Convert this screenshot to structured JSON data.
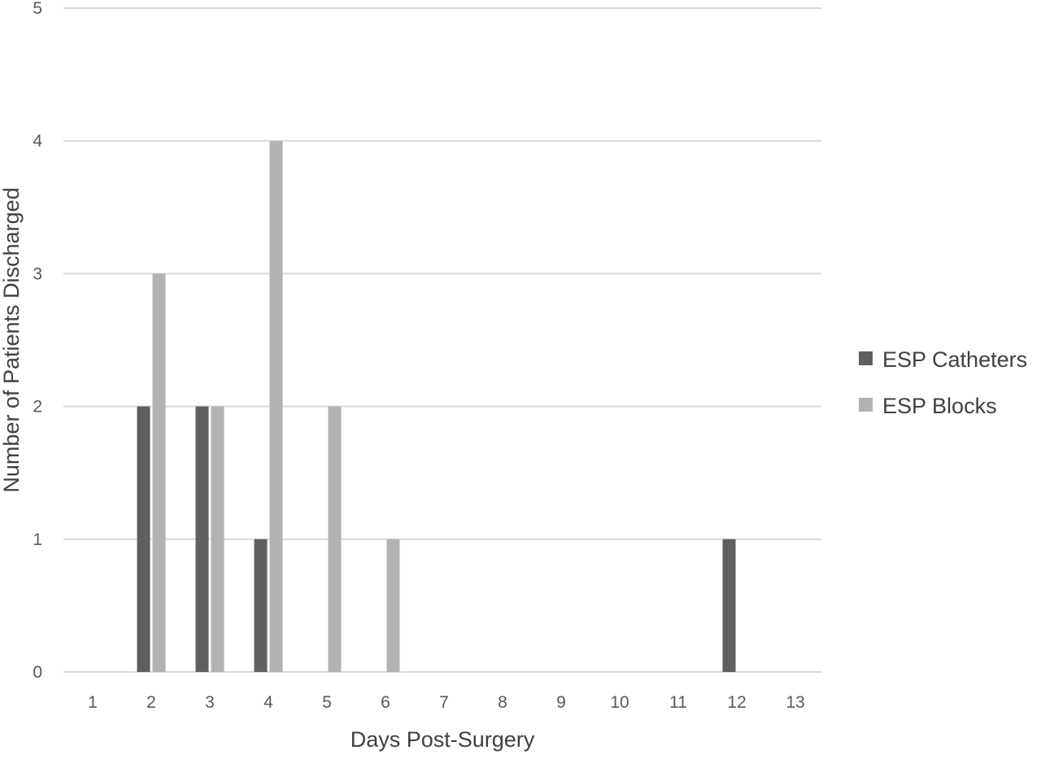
{
  "chart_data": {
    "type": "bar",
    "title": "",
    "xlabel": "Days Post-Surgery",
    "ylabel": "Number of Patients Discharged",
    "categories": [
      "1",
      "2",
      "3",
      "4",
      "5",
      "6",
      "7",
      "8",
      "9",
      "10",
      "11",
      "12",
      "13"
    ],
    "series": [
      {
        "name": "ESP Catheters",
        "color": "#5f5f5f",
        "values": [
          0,
          2,
          2,
          1,
          0,
          0,
          0,
          0,
          0,
          0,
          0,
          1,
          0
        ]
      },
      {
        "name": "ESP Blocks",
        "color": "#b2b2b2",
        "values": [
          0,
          3,
          2,
          4,
          2,
          1,
          0,
          0,
          0,
          0,
          0,
          0,
          0
        ]
      }
    ],
    "ylim": [
      0,
      5
    ],
    "yticks": [
      0,
      1,
      2,
      3,
      4,
      5
    ],
    "grid": true,
    "legend_position": "right"
  }
}
